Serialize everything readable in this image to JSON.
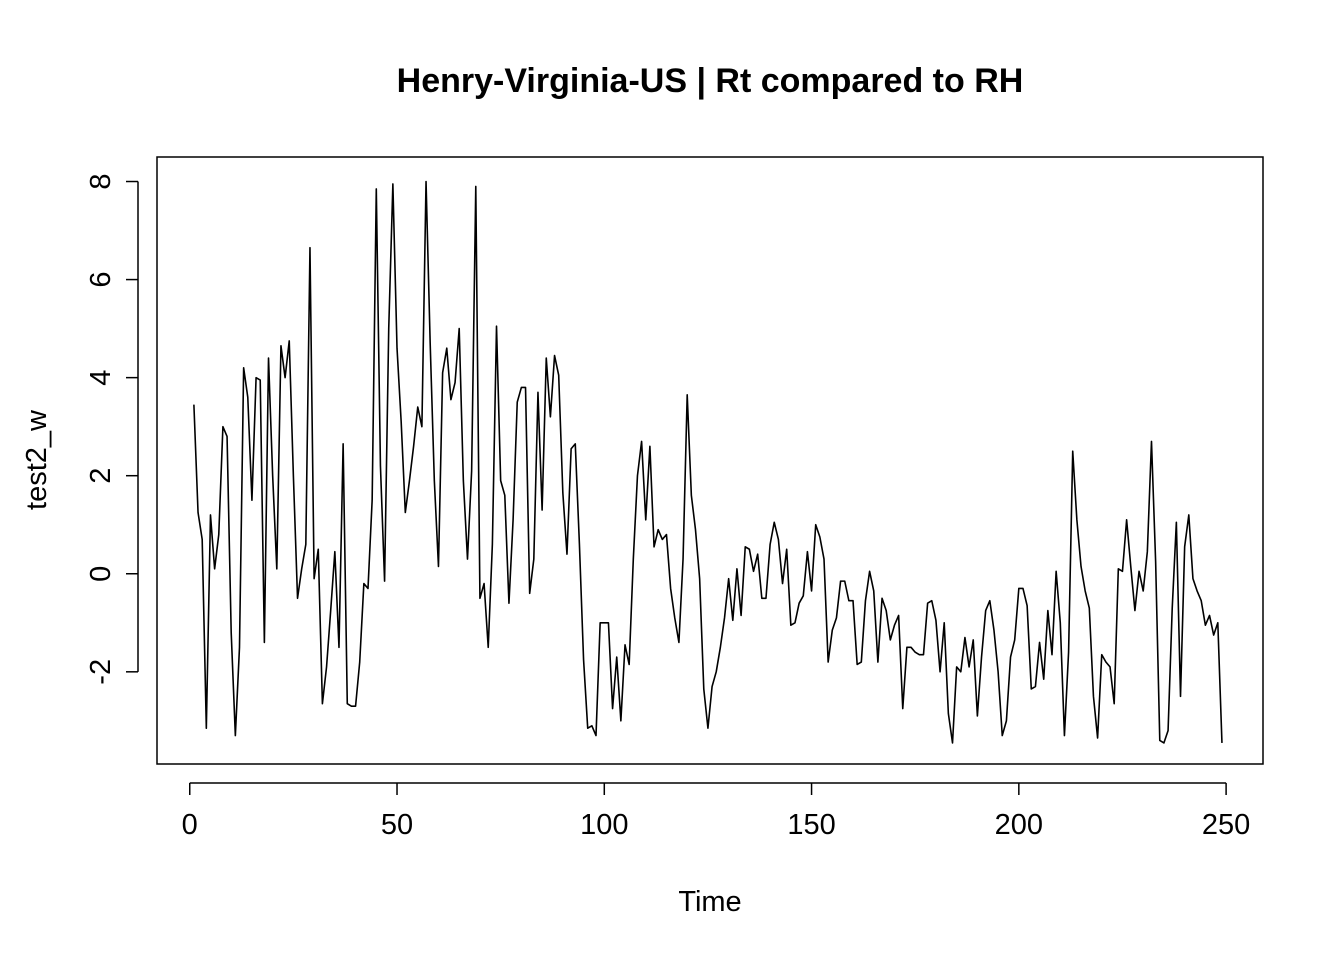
{
  "chart_data": {
    "type": "line",
    "title": "Henry-Virginia-US | Rt compared to RH",
    "xlabel": "Time",
    "ylabel": "test2_w",
    "xlim": [
      -7.9,
      258.9
    ],
    "ylim": [
      -3.88,
      8.5
    ],
    "x_ticks": [
      0,
      50,
      100,
      150,
      200,
      250
    ],
    "y_ticks": [
      -2,
      0,
      2,
      4,
      6,
      8
    ],
    "x_tick_labels": [
      "0",
      "50",
      "100",
      "150",
      "200",
      "250"
    ],
    "y_tick_labels": [
      "-2",
      "0",
      "2",
      "4",
      "6",
      "8"
    ],
    "line_color": "#000000",
    "grid": false,
    "series": [
      {
        "x_start": 1,
        "x_step": 1,
        "values": [
          3.45,
          1.25,
          0.7,
          -3.15,
          1.2,
          0.1,
          0.8,
          3.0,
          2.8,
          -1.2,
          -3.3,
          -1.5,
          4.2,
          3.6,
          1.5,
          4.0,
          3.95,
          -1.4,
          4.4,
          2.0,
          0.1,
          4.65,
          4.0,
          4.75,
          2.0,
          -0.5,
          0.1,
          0.6,
          6.65,
          -0.1,
          0.5,
          -2.65,
          -1.9,
          -0.75,
          0.45,
          -1.5,
          2.65,
          -2.65,
          -2.7,
          -2.7,
          -1.8,
          -0.2,
          -0.3,
          1.5,
          7.85,
          2.2,
          -0.15,
          5.0,
          7.95,
          4.6,
          3.1,
          1.25,
          1.9,
          2.6,
          3.4,
          3.0,
          8.0,
          4.7,
          1.9,
          0.15,
          4.1,
          4.6,
          3.55,
          3.9,
          5.0,
          1.9,
          0.3,
          2.1,
          7.9,
          -0.5,
          -0.2,
          -1.5,
          0.6,
          5.05,
          1.9,
          1.6,
          -0.6,
          1.1,
          3.5,
          3.8,
          3.8,
          -0.4,
          0.3,
          3.7,
          1.3,
          4.4,
          3.2,
          4.45,
          4.05,
          1.65,
          0.4,
          2.55,
          2.65,
          0.6,
          -1.75,
          -3.15,
          -3.1,
          -3.3,
          -1.0,
          -1.0,
          -1.0,
          -2.75,
          -1.7,
          -3.0,
          -1.45,
          -1.85,
          0.3,
          2.0,
          2.7,
          1.1,
          2.6,
          0.55,
          0.9,
          0.7,
          0.8,
          -0.3,
          -0.9,
          -1.4,
          0.3,
          3.65,
          1.6,
          0.9,
          -0.1,
          -2.35,
          -3.15,
          -2.3,
          -2.0,
          -1.5,
          -0.9,
          -0.1,
          -0.95,
          0.1,
          -0.85,
          0.55,
          0.5,
          0.05,
          0.4,
          -0.5,
          -0.5,
          0.6,
          1.05,
          0.7,
          -0.2,
          0.5,
          -1.05,
          -1.0,
          -0.6,
          -0.45,
          0.45,
          -0.35,
          1.0,
          0.75,
          0.3,
          -1.8,
          -1.15,
          -0.9,
          -0.15,
          -0.15,
          -0.55,
          -0.55,
          -1.85,
          -1.8,
          -0.55,
          0.05,
          -0.35,
          -1.8,
          -0.5,
          -0.75,
          -1.35,
          -1.05,
          -0.85,
          -2.75,
          -1.5,
          -1.5,
          -1.6,
          -1.65,
          -1.65,
          -0.6,
          -0.55,
          -0.95,
          -2.0,
          -1.0,
          -2.85,
          -3.45,
          -1.9,
          -2.0,
          -1.3,
          -1.9,
          -1.35,
          -2.9,
          -1.7,
          -0.75,
          -0.55,
          -1.15,
          -2.0,
          -3.3,
          -3.0,
          -1.7,
          -1.35,
          -0.3,
          -0.3,
          -0.65,
          -2.35,
          -2.3,
          -1.4,
          -2.15,
          -0.75,
          -1.65,
          0.05,
          -1.0,
          -3.3,
          -1.6,
          2.5,
          1.1,
          0.15,
          -0.35,
          -0.7,
          -2.5,
          -3.35,
          -1.65,
          -1.8,
          -1.9,
          -2.65,
          0.1,
          0.05,
          1.1,
          0.15,
          -0.75,
          0.05,
          -0.35,
          0.45,
          2.7,
          0.25,
          -3.4,
          -3.45,
          -3.2,
          -0.7,
          1.05,
          -2.5,
          0.55,
          1.2,
          -0.1,
          -0.35,
          -0.55,
          -1.05,
          -0.85,
          -1.25,
          -1.0,
          -3.45
        ]
      }
    ]
  }
}
